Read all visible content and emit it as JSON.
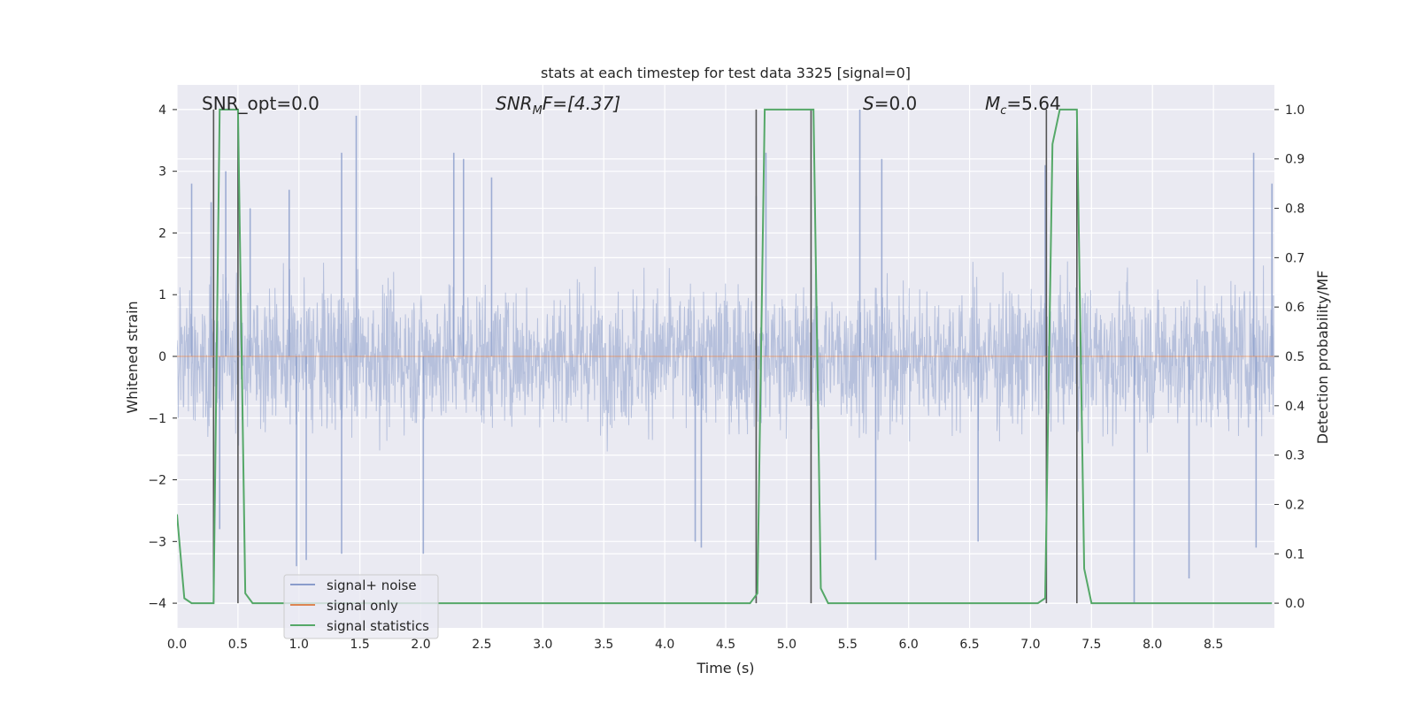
{
  "chart_data": {
    "type": "line",
    "title": "stats at each timestep for test data 3325 [signal=0]",
    "xlabel": "Time (s)",
    "ylabel_left": "Whitened strain",
    "ylabel_right": "Detection probability/MF",
    "xlim": [
      0.0,
      9.0
    ],
    "ylim_left": [
      -4.4,
      4.4
    ],
    "ylim_right": [
      -0.05,
      1.05
    ],
    "x_ticks": [
      "0.0",
      "0.5",
      "1.0",
      "1.5",
      "2.0",
      "2.5",
      "3.0",
      "3.5",
      "4.0",
      "4.5",
      "5.0",
      "5.5",
      "6.0",
      "6.5",
      "7.0",
      "7.5",
      "8.0",
      "8.5"
    ],
    "y_ticks_left": [
      "−4",
      "−3",
      "−2",
      "−1",
      "0",
      "1",
      "2",
      "3",
      "4"
    ],
    "y_ticks_right": [
      "0.0",
      "0.1",
      "0.2",
      "0.3",
      "0.4",
      "0.5",
      "0.6",
      "0.7",
      "0.8",
      "0.9",
      "1.0"
    ],
    "grid": true,
    "legend_position": "lower-left",
    "annotations": {
      "snr_opt": "SNR_opt=0.0",
      "snr_mf_prefix": "SNR",
      "snr_mf_sub": "M",
      "snr_mf_suffix": "F=[4.37]",
      "s_prefix": "S",
      "s_suffix": "=0.0",
      "mc_prefix": "M",
      "mc_sub": "c",
      "mc_suffix": "=5.64"
    },
    "series": [
      {
        "name": "signal+ noise",
        "color": "#8a9ccb",
        "axis": "left",
        "description": "whitened noise fluctuating roughly within ±2 strain with spikes to about ±4, 0 to 9 s",
        "band_envelope": 1.6,
        "spikes": [
          {
            "x": 0.12,
            "y": 2.8
          },
          {
            "x": 0.28,
            "y": 2.5
          },
          {
            "x": 0.4,
            "y": 3.0
          },
          {
            "x": 0.6,
            "y": 2.4
          },
          {
            "x": 0.92,
            "y": 2.7
          },
          {
            "x": 1.35,
            "y": 3.3
          },
          {
            "x": 1.47,
            "y": 3.9
          },
          {
            "x": 2.27,
            "y": 3.3
          },
          {
            "x": 2.35,
            "y": 3.2
          },
          {
            "x": 2.58,
            "y": 2.9
          },
          {
            "x": 4.75,
            "y": 2.6
          },
          {
            "x": 4.83,
            "y": 3.3
          },
          {
            "x": 5.6,
            "y": 4.0
          },
          {
            "x": 5.78,
            "y": 3.2
          },
          {
            "x": 7.12,
            "y": 3.1
          },
          {
            "x": 8.83,
            "y": 3.3
          },
          {
            "x": 8.98,
            "y": 2.8
          },
          {
            "x": 0.98,
            "y": -3.4
          },
          {
            "x": 1.06,
            "y": -3.3
          },
          {
            "x": 1.35,
            "y": -3.2
          },
          {
            "x": 2.02,
            "y": -3.2
          },
          {
            "x": 4.3,
            "y": -3.1
          },
          {
            "x": 5.73,
            "y": -3.3
          },
          {
            "x": 6.57,
            "y": -3.0
          },
          {
            "x": 7.85,
            "y": -4.0
          },
          {
            "x": 8.3,
            "y": -3.6
          },
          {
            "x": 8.85,
            "y": -3.1
          },
          {
            "x": 0.35,
            "y": -2.8
          },
          {
            "x": 4.25,
            "y": -3.0
          }
        ]
      },
      {
        "name": "signal only",
        "color": "#dd8452",
        "axis": "left",
        "x": [
          0.0,
          9.0
        ],
        "y": [
          0,
          0
        ]
      },
      {
        "name": "signal statistics",
        "color": "#55a868",
        "axis": "right",
        "x": [
          0.0,
          0.06,
          0.12,
          0.24,
          0.3,
          0.35,
          0.4,
          0.45,
          0.5,
          0.56,
          0.62,
          0.7,
          4.7,
          4.76,
          4.82,
          4.9,
          5.16,
          5.22,
          5.28,
          5.34,
          7.06,
          7.12,
          7.18,
          7.24,
          7.3,
          7.38,
          7.44,
          7.5,
          8.98
        ],
        "y": [
          0.18,
          0.01,
          0.0,
          0.0,
          0.0,
          1.0,
          1.0,
          1.0,
          1.0,
          0.02,
          0.0,
          0.0,
          0.0,
          0.02,
          1.0,
          1.0,
          1.0,
          1.0,
          0.03,
          0.0,
          0.0,
          0.01,
          0.93,
          1.0,
          1.0,
          1.0,
          0.07,
          0.0,
          0.0
        ]
      }
    ],
    "vertical_lines": [
      0.3,
      0.5,
      4.75,
      5.2,
      7.13,
      7.38
    ]
  }
}
